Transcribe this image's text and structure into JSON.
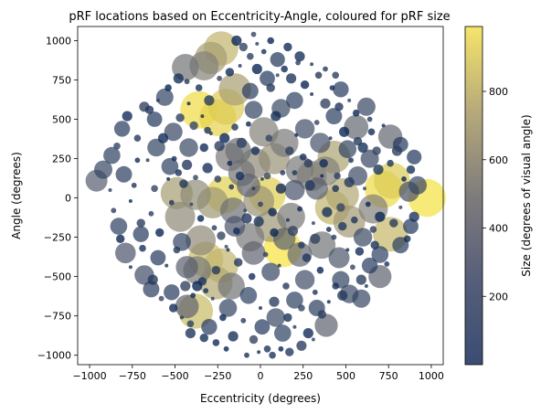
{
  "chart_data": {
    "type": "scatter",
    "title": "pRF locations based on Eccentricity-Angle, coloured for pRF size",
    "xlabel": "Eccentricity (degrees)",
    "ylabel": "Angle (degrees)",
    "xlim": [
      -1070,
      1070
    ],
    "ylim": [
      -1060,
      1090
    ],
    "xticks": [
      -1000,
      -750,
      -500,
      -250,
      0,
      250,
      500,
      750,
      1000
    ],
    "xtick_labels": [
      "−1000",
      "−750",
      "−500",
      "−250",
      "0",
      "250",
      "500",
      "750",
      "1000"
    ],
    "yticks": [
      -1000,
      -750,
      -500,
      -250,
      0,
      250,
      500,
      750,
      1000
    ],
    "ytick_labels": [
      "−1000",
      "−750",
      "−500",
      "−250",
      "0",
      "250",
      "500",
      "750",
      "1000"
    ],
    "colorbar": {
      "label": "Size (degrees of visual angle)",
      "range": [
        0,
        990
      ],
      "ticks": [
        200,
        400,
        600,
        800
      ],
      "tick_labels": [
        "200",
        "400",
        "600",
        "800"
      ],
      "colormap": "cividis"
    },
    "grid": false,
    "alpha": 0.7,
    "points": [
      {
        "x": 975,
        "y": 0,
        "size": 960
      },
      {
        "x": 720,
        "y": 55,
        "size": 930
      },
      {
        "x": 770,
        "y": 110,
        "size": 860
      },
      {
        "x": 760,
        "y": -230,
        "size": 780
      },
      {
        "x": 420,
        "y": -60,
        "size": 760
      },
      {
        "x": 480,
        "y": 20,
        "size": 700
      },
      {
        "x": 520,
        "y": -150,
        "size": 640
      },
      {
        "x": 660,
        "y": -70,
        "size": 520
      },
      {
        "x": 760,
        "y": 390,
        "size": 320
      },
      {
        "x": 870,
        "y": 40,
        "size": 200
      },
      {
        "x": 920,
        "y": 80,
        "size": 150
      },
      {
        "x": 560,
        "y": 450,
        "size": 330
      },
      {
        "x": 620,
        "y": 580,
        "size": 150
      },
      {
        "x": 700,
        "y": -500,
        "size": 280
      },
      {
        "x": 590,
        "y": -640,
        "size": 150
      },
      {
        "x": 520,
        "y": -610,
        "size": 160
      },
      {
        "x": 385,
        "y": -810,
        "size": 280
      },
      {
        "x": 430,
        "y": 260,
        "size": 680
      },
      {
        "x": 380,
        "y": 170,
        "size": 520
      },
      {
        "x": 300,
        "y": 140,
        "size": 560
      },
      {
        "x": 360,
        "y": -300,
        "size": 430
      },
      {
        "x": 130,
        "y": -320,
        "size": 970
      },
      {
        "x": 230,
        "y": -360,
        "size": 330
      },
      {
        "x": 40,
        "y": 20,
        "size": 880
      },
      {
        "x": -10,
        "y": -20,
        "size": 600
      },
      {
        "x": -210,
        "y": 20,
        "size": 890
      },
      {
        "x": -280,
        "y": -30,
        "size": 620
      },
      {
        "x": -380,
        "y": 20,
        "size": 570
      },
      {
        "x": -160,
        "y": -80,
        "size": 380
      },
      {
        "x": -360,
        "y": 560,
        "size": 940
      },
      {
        "x": -250,
        "y": 510,
        "size": 900
      },
      {
        "x": -200,
        "y": 580,
        "size": 860
      },
      {
        "x": -230,
        "y": 950,
        "size": 760
      },
      {
        "x": -290,
        "y": 890,
        "size": 660
      },
      {
        "x": -330,
        "y": 840,
        "size": 520
      },
      {
        "x": -440,
        "y": 830,
        "size": 420
      },
      {
        "x": -150,
        "y": 690,
        "size": 660
      },
      {
        "x": -320,
        "y": -390,
        "size": 800
      },
      {
        "x": -230,
        "y": -430,
        "size": 760
      },
      {
        "x": -260,
        "y": -540,
        "size": 700
      },
      {
        "x": -370,
        "y": -460,
        "size": 460
      },
      {
        "x": -430,
        "y": -440,
        "size": 260
      },
      {
        "x": -380,
        "y": -720,
        "size": 790
      },
      {
        "x": -430,
        "y": -690,
        "size": 300
      },
      {
        "x": -170,
        "y": -560,
        "size": 420
      },
      {
        "x": -490,
        "y": 30,
        "size": 650
      },
      {
        "x": -470,
        "y": -120,
        "size": 560
      },
      {
        "x": -350,
        "y": -270,
        "size": 560
      },
      {
        "x": -180,
        "y": 260,
        "size": 480
      },
      {
        "x": -30,
        "y": 220,
        "size": 560
      },
      {
        "x": 80,
        "y": 250,
        "size": 600
      },
      {
        "x": 20,
        "y": 420,
        "size": 520
      },
      {
        "x": 140,
        "y": 350,
        "size": 470
      },
      {
        "x": 230,
        "y": 180,
        "size": 470
      },
      {
        "x": 180,
        "y": -120,
        "size": 460
      },
      {
        "x": 60,
        "y": -180,
        "size": 620
      },
      {
        "x": -60,
        "y": -250,
        "size": 470
      },
      {
        "x": -40,
        "y": -350,
        "size": 300
      },
      {
        "x": 330,
        "y": 60,
        "size": 260
      },
      {
        "x": 460,
        "y": -380,
        "size": 220
      },
      {
        "x": -960,
        "y": 110,
        "size": 250
      },
      {
        "x": -920,
        "y": 180,
        "size": 150
      },
      {
        "x": -870,
        "y": 270,
        "size": 120
      },
      {
        "x": -810,
        "y": 440,
        "size": 100
      },
      {
        "x": -800,
        "y": 150,
        "size": 110
      },
      {
        "x": -790,
        "y": -350,
        "size": 210
      },
      {
        "x": -830,
        "y": -180,
        "size": 120
      },
      {
        "x": -700,
        "y": -230,
        "size": 100
      },
      {
        "x": -680,
        "y": -490,
        "size": 180
      },
      {
        "x": -640,
        "y": -580,
        "size": 110
      },
      {
        "x": -620,
        "y": 500,
        "size": 90
      },
      {
        "x": -560,
        "y": 640,
        "size": 130
      },
      {
        "x": -610,
        "y": 320,
        "size": 140
      },
      {
        "x": -600,
        "y": -380,
        "size": 90
      },
      {
        "x": -130,
        "y": 300,
        "size": 380
      },
      {
        "x": -110,
        "y": 160,
        "size": 420
      },
      {
        "x": -70,
        "y": 80,
        "size": 300
      },
      {
        "x": -150,
        "y": -180,
        "size": 210
      },
      {
        "x": 200,
        "y": 50,
        "size": 200
      },
      {
        "x": 140,
        "y": -260,
        "size": 260
      },
      {
        "x": 260,
        "y": -520,
        "size": 180
      },
      {
        "x": 200,
        "y": -650,
        "size": 120
      },
      {
        "x": 90,
        "y": -760,
        "size": 160
      },
      {
        "x": 130,
        "y": -860,
        "size": 120
      },
      {
        "x": 10,
        "y": -820,
        "size": 90
      },
      {
        "x": -70,
        "y": -620,
        "size": 120
      },
      {
        "x": 120,
        "y": 570,
        "size": 160
      },
      {
        "x": 200,
        "y": 620,
        "size": 120
      },
      {
        "x": 260,
        "y": 440,
        "size": 180
      },
      {
        "x": 350,
        "y": 350,
        "size": 200
      },
      {
        "x": 430,
        "y": 520,
        "size": 110
      },
      {
        "x": 470,
        "y": 690,
        "size": 100
      },
      {
        "x": 510,
        "y": 310,
        "size": 140
      },
      {
        "x": 570,
        "y": 140,
        "size": 170
      },
      {
        "x": 640,
        "y": 250,
        "size": 150
      },
      {
        "x": 700,
        "y": -360,
        "size": 120
      },
      {
        "x": 820,
        "y": -300,
        "size": 110
      },
      {
        "x": 600,
        "y": -250,
        "size": 160
      },
      {
        "x": -40,
        "y": 560,
        "size": 140
      },
      {
        "x": -60,
        "y": 680,
        "size": 110
      },
      {
        "x": 40,
        "y": 760,
        "size": 90
      },
      {
        "x": 100,
        "y": 880,
        "size": 80
      },
      {
        "x": -510,
        "y": 420,
        "size": 150
      },
      {
        "x": -420,
        "y": 320,
        "size": 160
      },
      {
        "x": -530,
        "y": 200,
        "size": 120
      },
      {
        "x": -460,
        "y": -280,
        "size": 140
      },
      {
        "x": -520,
        "y": -600,
        "size": 100
      },
      {
        "x": -300,
        "y": -820,
        "size": 100
      },
      {
        "x": -190,
        "y": -700,
        "size": 140
      },
      {
        "x": 60,
        "y": -470,
        "size": 150
      },
      {
        "x": 330,
        "y": -700,
        "size": 110
      },
      {
        "x": 470,
        "y": -520,
        "size": 130
      },
      {
        "x": 640,
        "y": -430,
        "size": 100
      },
      {
        "x": 880,
        "y": -180,
        "size": 90
      },
      {
        "x": 900,
        "y": 260,
        "size": 80
      },
      {
        "x": 820,
        "y": 340,
        "size": 90
      }
    ],
    "small_points": [
      [
        -540,
        120
      ],
      [
        -505,
        250
      ],
      [
        -480,
        160
      ],
      [
        -450,
        90
      ],
      [
        -430,
        210
      ],
      [
        -405,
        -40
      ],
      [
        -380,
        130
      ],
      [
        -350,
        -130
      ],
      [
        -330,
        320
      ],
      [
        -310,
        190
      ],
      [
        -290,
        410
      ],
      [
        -270,
        -190
      ],
      [
        -250,
        120
      ],
      [
        -230,
        -240
      ],
      [
        -210,
        380
      ],
      [
        -190,
        -330
      ],
      [
        -170,
        70
      ],
      [
        -150,
        450
      ],
      [
        -130,
        -410
      ],
      [
        -110,
        350
      ],
      [
        -90,
        -80
      ],
      [
        -70,
        470
      ],
      [
        -50,
        -500
      ],
      [
        -30,
        300
      ],
      [
        -10,
        -150
      ],
      [
        10,
        120
      ],
      [
        30,
        -360
      ],
      [
        50,
        380
      ],
      [
        70,
        -90
      ],
      [
        90,
        520
      ],
      [
        110,
        -430
      ],
      [
        130,
        160
      ],
      [
        150,
        -560
      ],
      [
        170,
        300
      ],
      [
        190,
        -210
      ],
      [
        210,
        400
      ],
      [
        230,
        -70
      ],
      [
        250,
        260
      ],
      [
        270,
        -380
      ],
      [
        290,
        80
      ],
      [
        310,
        -160
      ],
      [
        330,
        480
      ],
      [
        350,
        -460
      ],
      [
        370,
        220
      ],
      [
        390,
        -90
      ],
      [
        410,
        380
      ],
      [
        430,
        -250
      ],
      [
        450,
        140
      ],
      [
        470,
        -60
      ],
      [
        490,
        420
      ],
      [
        510,
        -330
      ],
      [
        530,
        240
      ],
      [
        550,
        -140
      ],
      [
        570,
        360
      ],
      [
        590,
        -520
      ],
      [
        610,
        60
      ],
      [
        630,
        -40
      ],
      [
        650,
        420
      ],
      [
        670,
        -300
      ],
      [
        690,
        180
      ],
      [
        -660,
        240
      ],
      [
        -640,
        -100
      ],
      [
        -620,
        60
      ],
      [
        -590,
        -220
      ],
      [
        -570,
        380
      ],
      [
        -550,
        -430
      ],
      [
        -520,
        -30
      ],
      [
        -490,
        -330
      ],
      [
        -470,
        510
      ],
      [
        -440,
        -560
      ],
      [
        -420,
        600
      ],
      [
        -395,
        -620
      ],
      [
        -360,
        700
      ],
      [
        -340,
        -530
      ],
      [
        -300,
        620
      ],
      [
        -280,
        -640
      ],
      [
        -240,
        760
      ],
      [
        -220,
        -760
      ],
      [
        -180,
        800
      ],
      [
        -160,
        -880
      ],
      [
        -120,
        840
      ],
      [
        -100,
        -780
      ],
      [
        -60,
        900
      ],
      [
        -40,
        -900
      ],
      [
        -20,
        820
      ],
      [
        0,
        -700
      ],
      [
        20,
        930
      ],
      [
        40,
        -960
      ],
      [
        60,
        700
      ],
      [
        80,
        -660
      ],
      [
        100,
        780
      ],
      [
        120,
        -960
      ],
      [
        140,
        820
      ],
      [
        160,
        -760
      ],
      [
        180,
        760
      ],
      [
        200,
        -820
      ],
      [
        220,
        860
      ],
      [
        240,
        -700
      ],
      [
        260,
        720
      ],
      [
        280,
        -860
      ],
      [
        300,
        660
      ],
      [
        320,
        -600
      ],
      [
        340,
        780
      ],
      [
        360,
        -740
      ],
      [
        380,
        600
      ],
      [
        400,
        -660
      ],
      [
        420,
        700
      ],
      [
        440,
        -560
      ],
      [
        460,
        580
      ],
      [
        480,
        -620
      ],
      [
        520,
        620
      ],
      [
        540,
        -440
      ],
      [
        560,
        540
      ],
      [
        580,
        -340
      ],
      [
        600,
        320
      ],
      [
        620,
        -560
      ],
      [
        640,
        500
      ],
      [
        660,
        -200
      ],
      [
        680,
        300
      ],
      [
        700,
        -120
      ],
      [
        720,
        460
      ],
      [
        740,
        -420
      ],
      [
        760,
        220
      ],
      [
        780,
        -160
      ],
      [
        800,
        300
      ],
      [
        820,
        -60
      ],
      [
        840,
        120
      ],
      [
        860,
        -260
      ],
      [
        880,
        180
      ],
      [
        900,
        -120
      ],
      [
        -880,
        50
      ],
      [
        -860,
        -80
      ],
      [
        -840,
        330
      ],
      [
        -820,
        -260
      ],
      [
        -780,
        520
      ],
      [
        -760,
        -440
      ],
      [
        -740,
        80
      ],
      [
        -720,
        380
      ],
      [
        -700,
        -160
      ],
      [
        -680,
        580
      ],
      [
        -760,
        -20
      ],
      [
        -720,
        240
      ],
      [
        -690,
        -320
      ],
      [
        -650,
        560
      ],
      [
        -630,
        -520
      ],
      [
        -600,
        620
      ],
      [
        -580,
        -640
      ],
      [
        -540,
        700
      ],
      [
        -510,
        -700
      ],
      [
        -480,
        760
      ],
      [
        -460,
        -760
      ],
      [
        -430,
        740
      ],
      [
        -410,
        -800
      ],
      [
        -390,
        460
      ],
      [
        -370,
        -560
      ],
      [
        -340,
        520
      ],
      [
        -320,
        -590
      ],
      [
        -310,
        430
      ],
      [
        -260,
        -460
      ],
      [
        -240,
        330
      ],
      [
        -200,
        -310
      ],
      [
        -180,
        220
      ],
      [
        -140,
        -210
      ],
      [
        -120,
        140
      ],
      [
        -80,
        -130
      ],
      [
        -40,
        60
      ],
      [
        0,
        -40
      ],
      [
        40,
        140
      ],
      [
        80,
        -220
      ],
      [
        120,
        60
      ],
      [
        160,
        -140
      ],
      [
        200,
        160
      ],
      [
        240,
        -300
      ],
      [
        280,
        220
      ],
      [
        320,
        -260
      ],
      [
        360,
        140
      ],
      [
        400,
        -200
      ],
      [
        440,
        60
      ],
      [
        480,
        -180
      ],
      [
        520,
        100
      ],
      [
        -20,
        980
      ],
      [
        -40,
        1040
      ],
      [
        60,
        1000
      ],
      [
        160,
        960
      ],
      [
        230,
        900
      ],
      [
        300,
        850
      ],
      [
        380,
        820
      ],
      [
        440,
        780
      ],
      [
        -100,
        960
      ],
      [
        -140,
        1000
      ],
      [
        -10,
        -980
      ],
      [
        -80,
        -1000
      ],
      [
        70,
        -1000
      ],
      [
        170,
        -980
      ],
      [
        240,
        -940
      ],
      [
        310,
        -900
      ],
      [
        -200,
        -960
      ],
      [
        -260,
        -920
      ],
      [
        -330,
        -890
      ],
      [
        -410,
        -860
      ]
    ]
  }
}
